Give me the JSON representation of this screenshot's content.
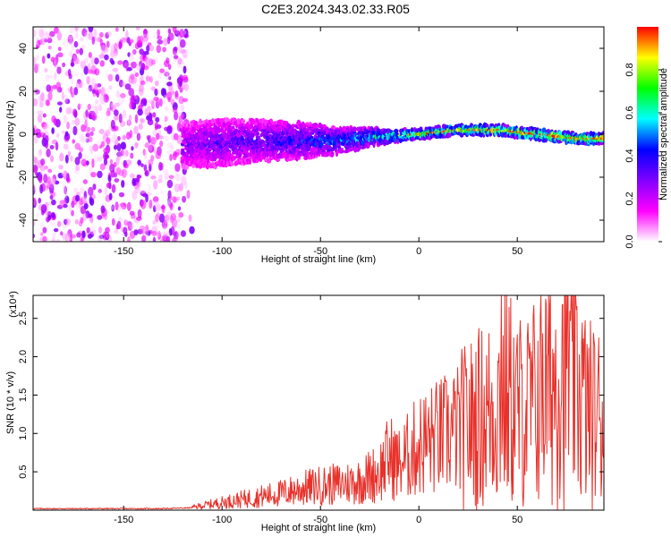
{
  "title": "C2E3.2024.343.02.33.R05",
  "chart_data": [
    {
      "type": "heatmap",
      "xlabel": "Height of straight line (km)",
      "ylabel": "Frequency (Hz)",
      "xlim": [
        -196,
        94
      ],
      "ylim": [
        -50,
        50
      ],
      "x_ticks": [
        -150,
        -100,
        -50,
        0,
        50
      ],
      "x_tick_labels": [
        "-150",
        "-100",
        "-50",
        "0",
        "50"
      ],
      "y_ticks": [
        -40,
        -20,
        0,
        20,
        40
      ],
      "y_tick_labels": [
        "-40",
        "-20",
        "0",
        "20",
        "40"
      ],
      "colorbar": {
        "label": "Normalized spectral amplitude",
        "range": [
          0,
          1
        ],
        "ticks": [
          0.0,
          0.2,
          0.4,
          0.6,
          0.8
        ],
        "tick_labels": [
          "0.0",
          "0.2",
          "0.4",
          "0.6",
          "0.8"
        ],
        "colormap": [
          "#ffffff",
          "#ff00ff",
          "#8000ff",
          "#0000ff",
          "#00ffff",
          "#00ff00",
          "#ffff00",
          "#ff0000"
        ]
      },
      "noise_region_x": [
        -196,
        -118
      ],
      "signal_band": [
        {
          "x": -120,
          "center": -5,
          "halfwidth": 9,
          "amp": 0.3
        },
        {
          "x": -100,
          "center": -4,
          "halfwidth": 9,
          "amp": 0.35
        },
        {
          "x": -80,
          "center": -3,
          "halfwidth": 8,
          "amp": 0.38
        },
        {
          "x": -60,
          "center": -3,
          "halfwidth": 7,
          "amp": 0.45
        },
        {
          "x": -40,
          "center": -3,
          "halfwidth": 5,
          "amp": 0.5
        },
        {
          "x": -20,
          "center": -1,
          "halfwidth": 3,
          "amp": 0.65
        },
        {
          "x": 0,
          "center": 0,
          "halfwidth": 2,
          "amp": 0.8
        },
        {
          "x": 20,
          "center": 2,
          "halfwidth": 2,
          "amp": 0.85
        },
        {
          "x": 40,
          "center": 2,
          "halfwidth": 2,
          "amp": 0.9
        },
        {
          "x": 60,
          "center": 0,
          "halfwidth": 2,
          "amp": 0.95
        },
        {
          "x": 80,
          "center": -2,
          "halfwidth": 2,
          "amp": 0.98
        },
        {
          "x": 94,
          "center": -2,
          "halfwidth": 2,
          "amp": 0.98
        }
      ]
    },
    {
      "type": "line",
      "xlabel": "Height of straight line (km)",
      "ylabel": "SNR (10 * v/v)",
      "y_multiplier": "(x10⁴)",
      "xlim": [
        -196,
        94
      ],
      "ylim": [
        0,
        2.8
      ],
      "x_ticks": [
        -150,
        -100,
        -50,
        0,
        50
      ],
      "x_tick_labels": [
        "-150",
        "-100",
        "-50",
        "0",
        "50"
      ],
      "y_ticks": [
        0.5,
        1.0,
        1.5,
        2.0,
        2.5
      ],
      "y_tick_labels": [
        "0.5",
        "1.0",
        "1.5",
        "2.0",
        "2.5"
      ],
      "line_color": "#e8312a",
      "series": [
        {
          "x": [
            -196,
            -160,
            -130,
            -116,
            -110,
            -100,
            -90,
            -80,
            -70,
            -60,
            -50,
            -40,
            -30,
            -20,
            -15,
            -10,
            -5,
            0,
            5,
            10,
            15,
            20,
            25,
            30,
            35,
            40,
            45,
            50,
            55,
            60,
            65,
            70,
            75,
            80,
            85,
            90,
            94
          ],
          "values": [
            0.02,
            0.02,
            0.02,
            0.03,
            0.06,
            0.1,
            0.14,
            0.18,
            0.22,
            0.28,
            0.32,
            0.34,
            0.38,
            0.5,
            0.7,
            0.6,
            0.72,
            0.85,
            0.9,
            0.95,
            1.0,
            1.05,
            1.1,
            1.2,
            1.25,
            1.4,
            1.5,
            1.3,
            1.3,
            1.45,
            1.6,
            1.75,
            2.15,
            1.75,
            1.3,
            1.2,
            1.3
          ],
          "peaks": [
            {
              "x": 42,
              "value": 2.8
            },
            {
              "x": 73,
              "value": 2.68
            },
            {
              "x": 77,
              "value": 2.47
            },
            {
              "x": 63,
              "value": 2.3
            }
          ]
        }
      ]
    }
  ]
}
